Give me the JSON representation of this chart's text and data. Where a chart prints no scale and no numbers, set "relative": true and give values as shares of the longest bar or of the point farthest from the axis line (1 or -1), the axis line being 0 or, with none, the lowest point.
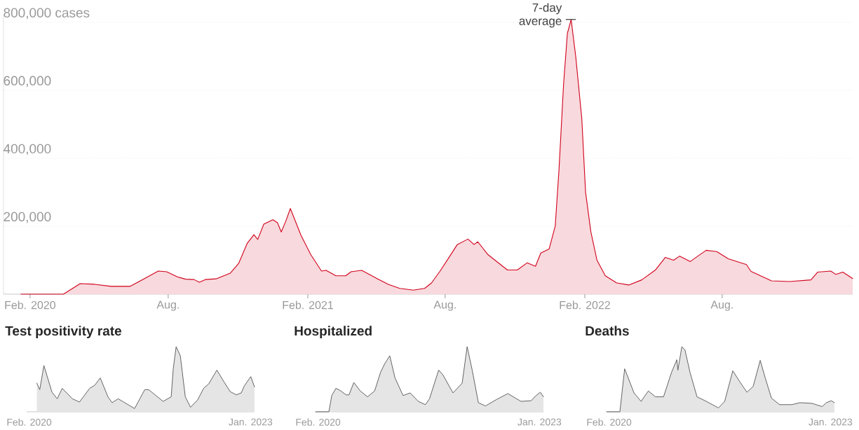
{
  "chart_data": [
    {
      "type": "area",
      "color": "#d0021b",
      "x": [
        "2020-01-20",
        "2020-03-16",
        "2020-04-07",
        "2020-04-26",
        "2020-05-18",
        "2020-06-12",
        "2020-06-30",
        "2020-07-19",
        "2020-07-30",
        "2020-08-13",
        "2020-08-24",
        "2020-09-04",
        "2020-09-11",
        "2020-09-19",
        "2020-10-03",
        "2020-10-22",
        "2020-11-02",
        "2020-11-13",
        "2020-11-22",
        "2020-11-27",
        "2020-12-05",
        "2020-12-17",
        "2020-12-23",
        "2020-12-28",
        "2021-01-03",
        "2021-01-09",
        "2021-01-23",
        "2021-02-05",
        "2021-02-19",
        "2021-02-25",
        "2021-03-10",
        "2021-03-23",
        "2021-03-30",
        "2021-04-13",
        "2021-05-04",
        "2021-05-18",
        "2021-06-02",
        "2021-06-20",
        "2021-07-05",
        "2021-07-14",
        "2021-07-25",
        "2021-08-06",
        "2021-08-17",
        "2021-08-31",
        "2021-09-08",
        "2021-09-13",
        "2021-09-26",
        "2021-10-22",
        "2021-11-04",
        "2021-11-17",
        "2021-11-28",
        "2021-12-05",
        "2021-12-16",
        "2021-12-24",
        "2021-12-29",
        "2022-01-04",
        "2022-01-09",
        "2022-01-14",
        "2022-01-20",
        "2022-01-28",
        "2022-02-02",
        "2022-02-09",
        "2022-02-17",
        "2022-02-28",
        "2022-03-15",
        "2022-03-31",
        "2022-04-17",
        "2022-05-05",
        "2022-05-18",
        "2022-05-29",
        "2022-06-06",
        "2022-06-20",
        "2022-06-30",
        "2022-07-11",
        "2022-07-25",
        "2022-08-09",
        "2022-09-02",
        "2022-09-08",
        "2022-10-05",
        "2022-10-29",
        "2022-11-26",
        "2022-12-05",
        "2022-12-22",
        "2022-12-29",
        "2023-01-07",
        "2023-01-20"
      ],
      "values": [
        0,
        0,
        31000,
        29000,
        23000,
        23000,
        45000,
        68000,
        66000,
        51000,
        44000,
        43000,
        35000,
        43000,
        45000,
        62000,
        91000,
        149000,
        175000,
        161000,
        206000,
        219000,
        210000,
        183000,
        215000,
        252000,
        173000,
        116000,
        68000,
        70000,
        54000,
        54000,
        66000,
        70000,
        45000,
        29000,
        17000,
        12000,
        17000,
        33000,
        67000,
        108000,
        146000,
        162000,
        146000,
        154000,
        117000,
        71000,
        71000,
        92000,
        82000,
        121000,
        133000,
        200000,
        367000,
        617000,
        767000,
        808000,
        700000,
        517000,
        300000,
        183000,
        100000,
        54000,
        33000,
        27000,
        42000,
        71000,
        108000,
        100000,
        112000,
        96000,
        112000,
        129000,
        125000,
        104000,
        87000,
        67000,
        39000,
        37000,
        42000,
        65000,
        68000,
        58000,
        65000,
        46000
      ],
      "xlim": [
        "2019-12-28",
        "2023-01-20"
      ],
      "ylim": [
        0,
        820000
      ],
      "xticks": [
        {
          "value": "2020-02-01",
          "label": "Feb. 2020"
        },
        {
          "value": "2020-08-01",
          "label": "Aug."
        },
        {
          "value": "2021-02-01",
          "label": "Feb. 2021"
        },
        {
          "value": "2021-08-01",
          "label": "Aug."
        },
        {
          "value": "2022-02-01",
          "label": "Feb. 2022"
        },
        {
          "value": "2022-08-01",
          "label": "Aug."
        }
      ],
      "yticks": [
        {
          "value": 200000,
          "label": "200,000"
        },
        {
          "value": 400000,
          "label": "400,000"
        },
        {
          "value": 600000,
          "label": "600,000"
        },
        {
          "value": 800000,
          "label": "800,000 cases"
        }
      ],
      "grid": "y",
      "annotations": [
        {
          "text": "7-day average",
          "x": "2022-01-14",
          "y": 808000
        }
      ]
    },
    {
      "type": "area",
      "title": "Test positivity rate",
      "relative": true,
      "color": "#555555",
      "x": [
        "2020-03-09",
        "2020-03-23",
        "2020-04-12",
        "2020-05-21",
        "2020-06-15",
        "2020-07-09",
        "2020-08-27",
        "2020-09-30",
        "2020-11-18",
        "2020-12-13",
        "2021-01-08",
        "2021-02-14",
        "2021-03-06",
        "2021-04-04",
        "2021-06-22",
        "2021-08-10",
        "2021-08-29",
        "2021-11-06",
        "2021-12-15",
        "2021-12-25",
        "2022-01-08",
        "2022-01-28",
        "2022-02-21",
        "2022-03-18",
        "2022-04-21",
        "2022-05-20",
        "2022-06-14",
        "2022-07-23",
        "2022-08-26",
        "2022-09-25",
        "2022-10-24",
        "2022-11-17",
        "2022-12-02",
        "2023-01-02",
        "2023-01-20"
      ],
      "values": [
        0.44,
        0.34,
        0.71,
        0.3,
        0.2,
        0.36,
        0.2,
        0.15,
        0.36,
        0.41,
        0.52,
        0.23,
        0.14,
        0.2,
        0.05,
        0.34,
        0.34,
        0.16,
        0.23,
        0.66,
        1.0,
        0.86,
        0.23,
        0.07,
        0.18,
        0.36,
        0.43,
        0.64,
        0.46,
        0.31,
        0.26,
        0.29,
        0.4,
        0.54,
        0.38
      ],
      "xlim": [
        "2020-01-20",
        "2023-01-20"
      ],
      "xticks": [
        {
          "value": "2020-02-01",
          "label": "Feb. 2020"
        },
        {
          "value": "2023-01-01",
          "label": "Jan. 2023"
        }
      ]
    },
    {
      "type": "area",
      "title": "Hospitalized",
      "relative": true,
      "color": "#555555",
      "x": [
        "2020-01-20",
        "2020-03-24",
        "2020-04-07",
        "2020-04-27",
        "2020-05-16",
        "2020-06-15",
        "2020-06-29",
        "2020-07-22",
        "2020-08-22",
        "2020-09-26",
        "2020-10-30",
        "2020-11-28",
        "2020-12-18",
        "2021-01-11",
        "2021-02-05",
        "2021-03-16",
        "2021-04-19",
        "2021-05-28",
        "2021-07-01",
        "2021-07-21",
        "2021-09-03",
        "2021-09-23",
        "2021-11-11",
        "2021-12-25",
        "2022-01-18",
        "2022-02-12",
        "2022-03-13",
        "2022-04-16",
        "2022-06-09",
        "2022-08-02",
        "2022-10-04",
        "2022-11-22",
        "2022-12-12",
        "2023-01-05",
        "2023-01-20"
      ],
      "values": [
        0,
        0,
        0.25,
        0.36,
        0.33,
        0.26,
        0.26,
        0.45,
        0.32,
        0.23,
        0.32,
        0.61,
        0.74,
        0.86,
        0.52,
        0.25,
        0.29,
        0.16,
        0.11,
        0.2,
        0.64,
        0.57,
        0.29,
        0.44,
        1.0,
        0.63,
        0.14,
        0.09,
        0.19,
        0.28,
        0.16,
        0.17,
        0.24,
        0.3,
        0.23
      ],
      "xlim": [
        "2020-01-20",
        "2023-01-20"
      ],
      "xticks": [
        {
          "value": "2020-02-01",
          "label": "Feb. 2020"
        },
        {
          "value": "2023-01-01",
          "label": "Jan. 2023"
        }
      ]
    },
    {
      "type": "area",
      "title": "Deaths",
      "relative": true,
      "color": "#555555",
      "x": [
        "2020-01-20",
        "2020-03-24",
        "2020-04-16",
        "2020-05-31",
        "2020-07-04",
        "2020-08-08",
        "2020-09-11",
        "2020-10-20",
        "2020-11-28",
        "2020-12-23",
        "2020-12-28",
        "2021-01-16",
        "2021-01-31",
        "2021-02-24",
        "2021-03-30",
        "2021-05-14",
        "2021-07-11",
        "2021-08-10",
        "2021-09-18",
        "2021-10-22",
        "2021-11-25",
        "2021-12-25",
        "2022-01-28",
        "2022-02-21",
        "2022-03-23",
        "2022-05-01",
        "2022-06-29",
        "2022-08-07",
        "2022-10-04",
        "2022-11-22",
        "2022-12-12",
        "2023-01-05",
        "2023-01-20"
      ],
      "values": [
        0,
        0,
        0.66,
        0.29,
        0.16,
        0.32,
        0.23,
        0.23,
        0.61,
        0.8,
        0.64,
        1.0,
        0.95,
        0.61,
        0.23,
        0.16,
        0.06,
        0.16,
        0.63,
        0.46,
        0.3,
        0.39,
        0.79,
        0.52,
        0.21,
        0.11,
        0.11,
        0.14,
        0.13,
        0.08,
        0.14,
        0.17,
        0.14
      ],
      "xlim": [
        "2020-01-20",
        "2023-01-20"
      ],
      "xticks": [
        {
          "value": "2020-02-01",
          "label": "Feb. 2020"
        },
        {
          "value": "2023-01-01",
          "label": "Jan. 2023"
        }
      ]
    }
  ]
}
